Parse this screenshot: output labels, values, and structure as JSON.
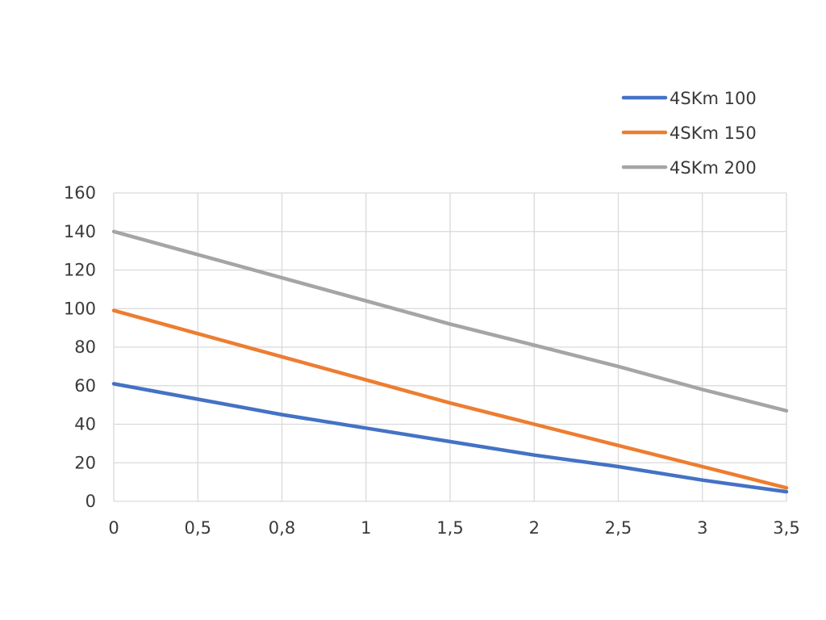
{
  "chart_data": {
    "type": "line",
    "title": "",
    "xlabel": "",
    "ylabel": "",
    "categories": [
      "0",
      "0,5",
      "0,8",
      "1",
      "1,5",
      "2",
      "2,5",
      "3",
      "3,5"
    ],
    "ylim": [
      0,
      160
    ],
    "yticks": [
      "0",
      "20",
      "40",
      "60",
      "80",
      "100",
      "120",
      "140",
      "160"
    ],
    "grid": true,
    "legend_position": "top-right",
    "series": [
      {
        "name": "4SKm 100",
        "color": "#4472C4",
        "values": [
          61,
          53,
          45,
          38,
          31,
          24,
          18,
          11,
          5
        ]
      },
      {
        "name": "4SKm 150",
        "color": "#ED7D31",
        "values": [
          99,
          87,
          75,
          63,
          51,
          40,
          29,
          18,
          7
        ]
      },
      {
        "name": "4SKm 200",
        "color": "#A5A5A5",
        "values": [
          140,
          128,
          116,
          104,
          92,
          81,
          70,
          58,
          47
        ]
      }
    ]
  }
}
